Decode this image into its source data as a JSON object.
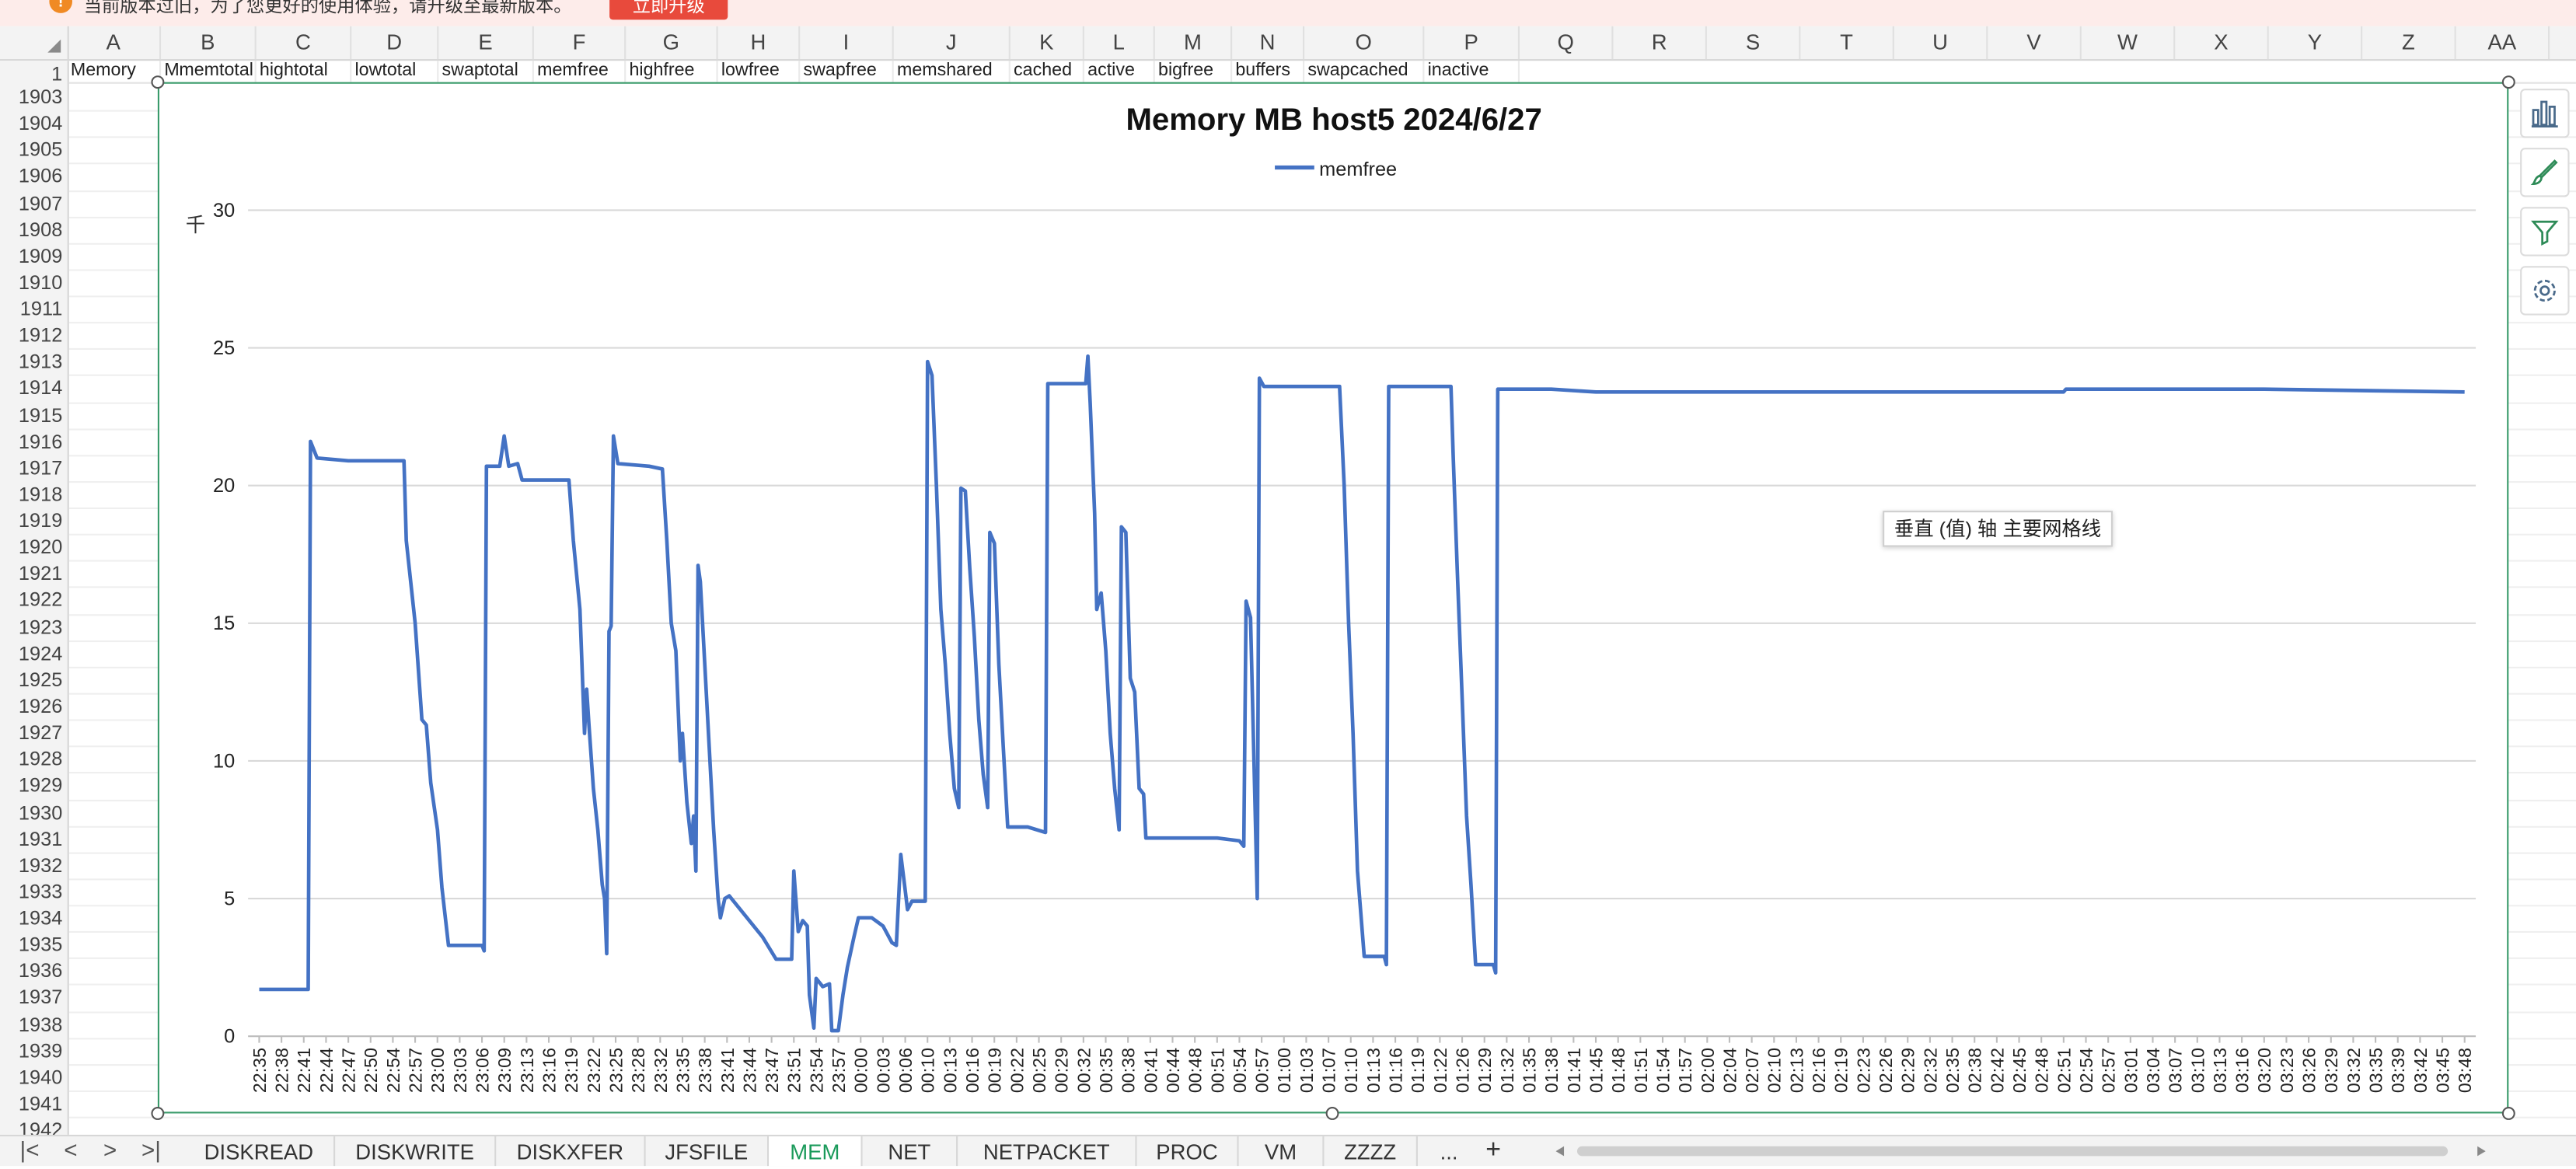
{
  "update_bar": {
    "icon": "warning-icon",
    "message": "当前版本过旧，为了您更好的使用体验，请升级至最新版本。",
    "button": "立即升级"
  },
  "columns": [
    "A",
    "B",
    "C",
    "D",
    "E",
    "F",
    "G",
    "H",
    "I",
    "J",
    "K",
    "L",
    "M",
    "N",
    "O",
    "P",
    "Q",
    "R",
    "S",
    "T",
    "U",
    "V",
    "W",
    "X",
    "Y",
    "Z",
    "AA"
  ],
  "row1": {
    "number": "1",
    "cells": [
      "Memory",
      "memtotal",
      "hightotal",
      "lowtotal",
      "swaptotal",
      "memfree",
      "highfree",
      "lowfree",
      "swapfree",
      "memshared",
      "cached",
      "active",
      "bigfree",
      "buffers",
      "swapcached",
      "inactive"
    ],
    "col_b_prefix": "M"
  },
  "row_numbers": [
    "1903",
    "1904",
    "1905",
    "1906",
    "1907",
    "1908",
    "1909",
    "1910",
    "1911",
    "1912",
    "1913",
    "1914",
    "1915",
    "1916",
    "1917",
    "1918",
    "1919",
    "1920",
    "1921",
    "1922",
    "1923",
    "1924",
    "1925",
    "1926",
    "1927",
    "1928",
    "1929",
    "1930",
    "1931",
    "1932",
    "1933",
    "1934",
    "1935",
    "1936",
    "1937",
    "1938",
    "1939",
    "1940",
    "1941",
    "1942"
  ],
  "tooltip": "垂直 (值) 轴 主要网格线",
  "sheet_tabs": [
    "DISKREAD",
    "DISKWRITE",
    "DISKXFER",
    "JFSFILE",
    "MEM",
    "NET",
    "NETPACKET",
    "PROC",
    "VM",
    "ZZZZ"
  ],
  "active_tab": "MEM",
  "tabs_more": "...",
  "tabs_add": "+",
  "nav_symbols": [
    "|<",
    "<",
    ">",
    ">|"
  ],
  "colors": {
    "series": "#4472c4",
    "selection": "#3a9b6b",
    "active_tab": "#1a9a5a",
    "update_button": "#e84a3c"
  },
  "chart_data": {
    "type": "line",
    "title": "Memory MB host5  2024/6/27",
    "ylabel": "千",
    "ylim": [
      0,
      30
    ],
    "yticks": [
      "0",
      "5",
      "10",
      "15",
      "20",
      "25",
      "30"
    ],
    "legend": "top-center",
    "grid": true,
    "x_tick_labels": [
      "22:35",
      "22:38",
      "22:41",
      "22:44",
      "22:47",
      "22:50",
      "22:54",
      "22:57",
      "23:00",
      "23:03",
      "23:06",
      "23:09",
      "23:13",
      "23:16",
      "23:19",
      "23:22",
      "23:25",
      "23:28",
      "23:32",
      "23:35",
      "23:38",
      "23:41",
      "23:44",
      "23:47",
      "23:51",
      "23:54",
      "23:57",
      "00:00",
      "00:03",
      "00:06",
      "00:10",
      "00:13",
      "00:16",
      "00:19",
      "00:22",
      "00:25",
      "00:29",
      "00:32",
      "00:35",
      "00:38",
      "00:41",
      "00:44",
      "00:48",
      "00:51",
      "00:54",
      "00:57",
      "01:00",
      "01:03",
      "01:07",
      "01:10",
      "01:13",
      "01:16",
      "01:19",
      "01:22",
      "01:26",
      "01:29",
      "01:32",
      "01:35",
      "01:38",
      "01:41",
      "01:45",
      "01:48",
      "01:51",
      "01:54",
      "01:57",
      "02:00",
      "02:04",
      "02:07",
      "02:10",
      "02:13",
      "02:16",
      "02:19",
      "02:23",
      "02:26",
      "02:29",
      "02:32",
      "02:35",
      "02:38",
      "02:42",
      "02:45",
      "02:48",
      "02:51",
      "02:54",
      "02:57",
      "03:01",
      "03:04",
      "03:07",
      "03:10",
      "03:13",
      "03:16",
      "03:20",
      "03:23",
      "03:26",
      "03:29",
      "03:32",
      "03:35",
      "03:39",
      "03:42",
      "03:45",
      "03:48"
    ],
    "series": [
      {
        "name": "memfree",
        "points": [
          [
            0,
            1.7
          ],
          [
            2.2,
            1.7
          ],
          [
            2.3,
            21.6
          ],
          [
            2.6,
            21.0
          ],
          [
            4.0,
            20.9
          ],
          [
            6.5,
            20.9
          ],
          [
            6.6,
            18.0
          ],
          [
            7.0,
            15.0
          ],
          [
            7.3,
            11.5
          ],
          [
            7.5,
            11.3
          ],
          [
            7.7,
            9.2
          ],
          [
            8.0,
            7.5
          ],
          [
            8.2,
            5.4
          ],
          [
            8.5,
            3.3
          ],
          [
            9.2,
            3.3
          ],
          [
            10.0,
            3.3
          ],
          [
            10.1,
            3.1
          ],
          [
            10.2,
            20.7
          ],
          [
            10.8,
            20.7
          ],
          [
            11.0,
            21.8
          ],
          [
            11.2,
            20.7
          ],
          [
            11.6,
            20.8
          ],
          [
            11.8,
            20.2
          ],
          [
            13.0,
            20.2
          ],
          [
            13.9,
            20.2
          ],
          [
            14.1,
            18.0
          ],
          [
            14.4,
            15.5
          ],
          [
            14.6,
            11.0
          ],
          [
            14.7,
            12.6
          ],
          [
            14.8,
            11.3
          ],
          [
            15.0,
            9.0
          ],
          [
            15.2,
            7.5
          ],
          [
            15.4,
            5.5
          ],
          [
            15.5,
            5.0
          ],
          [
            15.6,
            3.0
          ],
          [
            15.7,
            14.7
          ],
          [
            15.8,
            14.9
          ],
          [
            15.9,
            21.8
          ],
          [
            16.1,
            20.8
          ],
          [
            17.5,
            20.7
          ],
          [
            18.1,
            20.6
          ],
          [
            18.3,
            18.0
          ],
          [
            18.5,
            15.0
          ],
          [
            18.7,
            14.0
          ],
          [
            18.9,
            10.0
          ],
          [
            19.0,
            11.0
          ],
          [
            19.2,
            8.5
          ],
          [
            19.4,
            7.0
          ],
          [
            19.5,
            8.0
          ],
          [
            19.6,
            6.0
          ],
          [
            19.7,
            17.1
          ],
          [
            19.8,
            16.5
          ],
          [
            20.0,
            13.5
          ],
          [
            20.2,
            10.5
          ],
          [
            20.4,
            7.5
          ],
          [
            20.6,
            5.0
          ],
          [
            20.7,
            4.3
          ],
          [
            20.9,
            5.0
          ],
          [
            21.1,
            5.1
          ],
          [
            21.5,
            4.7
          ],
          [
            22.0,
            4.2
          ],
          [
            22.6,
            3.6
          ],
          [
            23.2,
            2.8
          ],
          [
            23.9,
            2.8
          ],
          [
            24.0,
            6.0
          ],
          [
            24.2,
            3.8
          ],
          [
            24.4,
            4.2
          ],
          [
            24.6,
            4.0
          ],
          [
            24.7,
            1.5
          ],
          [
            24.9,
            0.3
          ],
          [
            25.0,
            2.1
          ],
          [
            25.3,
            1.8
          ],
          [
            25.6,
            1.9
          ],
          [
            25.7,
            0.2
          ],
          [
            26.0,
            0.2
          ],
          [
            26.2,
            1.5
          ],
          [
            26.4,
            2.5
          ],
          [
            26.7,
            3.6
          ],
          [
            26.9,
            4.3
          ],
          [
            27.5,
            4.3
          ],
          [
            28.0,
            4.0
          ],
          [
            28.4,
            3.4
          ],
          [
            28.6,
            3.3
          ],
          [
            28.8,
            6.6
          ],
          [
            29.0,
            5.3
          ],
          [
            29.1,
            4.6
          ],
          [
            29.3,
            4.9
          ],
          [
            29.9,
            4.9
          ],
          [
            30.0,
            24.5
          ],
          [
            30.2,
            24.0
          ],
          [
            30.4,
            20.0
          ],
          [
            30.6,
            15.5
          ],
          [
            30.8,
            13.5
          ],
          [
            31.0,
            11.0
          ],
          [
            31.2,
            9.0
          ],
          [
            31.4,
            8.3
          ],
          [
            31.5,
            19.9
          ],
          [
            31.7,
            19.8
          ],
          [
            31.9,
            17.0
          ],
          [
            32.1,
            14.5
          ],
          [
            32.3,
            11.5
          ],
          [
            32.5,
            9.5
          ],
          [
            32.7,
            8.3
          ],
          [
            32.8,
            18.3
          ],
          [
            33.0,
            17.9
          ],
          [
            33.2,
            13.5
          ],
          [
            33.4,
            10.5
          ],
          [
            33.6,
            7.6
          ],
          [
            34.5,
            7.6
          ],
          [
            35.3,
            7.4
          ],
          [
            35.4,
            23.7
          ],
          [
            36.0,
            23.7
          ],
          [
            37.1,
            23.7
          ],
          [
            37.2,
            24.7
          ],
          [
            37.3,
            23.0
          ],
          [
            37.5,
            19.0
          ],
          [
            37.6,
            15.5
          ],
          [
            37.8,
            16.1
          ],
          [
            38.0,
            14.0
          ],
          [
            38.2,
            11.0
          ],
          [
            38.4,
            9.0
          ],
          [
            38.6,
            7.5
          ],
          [
            38.7,
            18.5
          ],
          [
            38.9,
            18.3
          ],
          [
            39.1,
            13.0
          ],
          [
            39.3,
            12.5
          ],
          [
            39.5,
            9.0
          ],
          [
            39.7,
            8.8
          ],
          [
            39.8,
            7.2
          ],
          [
            41.0,
            7.2
          ],
          [
            43.0,
            7.2
          ],
          [
            44.0,
            7.1
          ],
          [
            44.2,
            6.9
          ],
          [
            44.3,
            15.8
          ],
          [
            44.5,
            15.2
          ],
          [
            44.8,
            5.0
          ],
          [
            44.9,
            23.9
          ],
          [
            45.1,
            23.6
          ],
          [
            46.0,
            23.6
          ],
          [
            48.5,
            23.6
          ],
          [
            48.7,
            20.0
          ],
          [
            48.9,
            15.0
          ],
          [
            49.1,
            11.0
          ],
          [
            49.3,
            6.0
          ],
          [
            49.6,
            2.9
          ],
          [
            50.5,
            2.9
          ],
          [
            50.6,
            2.6
          ],
          [
            50.7,
            23.6
          ],
          [
            51.5,
            23.6
          ],
          [
            53.5,
            23.6
          ],
          [
            53.6,
            21.0
          ],
          [
            53.8,
            16.5
          ],
          [
            54.0,
            12.3
          ],
          [
            54.2,
            8.0
          ],
          [
            54.4,
            5.5
          ],
          [
            54.6,
            2.6
          ],
          [
            55.4,
            2.6
          ],
          [
            55.5,
            2.3
          ],
          [
            55.6,
            23.5
          ],
          [
            57.0,
            23.5
          ],
          [
            58.0,
            23.5
          ],
          [
            60.0,
            23.4
          ],
          [
            70.0,
            23.4
          ],
          [
            75.0,
            23.4
          ],
          [
            81.0,
            23.4
          ],
          [
            81.1,
            23.5
          ],
          [
            90.0,
            23.5
          ],
          [
            99.0,
            23.4
          ]
        ]
      }
    ]
  }
}
